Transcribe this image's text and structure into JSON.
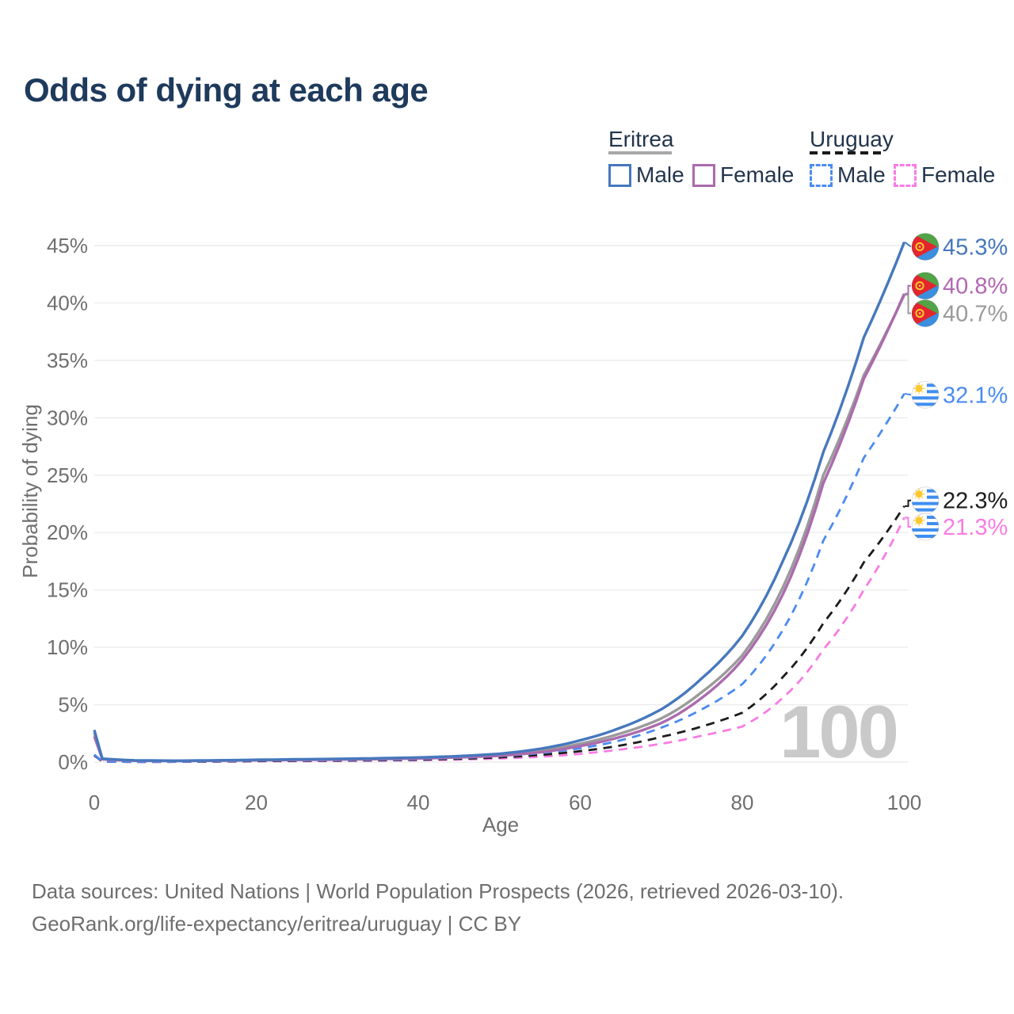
{
  "title": "Odds of dying at each age",
  "legend": {
    "eritrea": {
      "name": "Eritrea",
      "male_label": "Male",
      "female_label": "Female",
      "line_color": "#a8a8a8",
      "male_color": "#4678bd",
      "female_color": "#ab6bad"
    },
    "uruguay": {
      "name": "Uruguay",
      "male_label": "Male",
      "female_label": "Female",
      "line_color": "#1a1a1a",
      "male_color": "#4b8bf0",
      "female_color": "#f87ce4"
    }
  },
  "chart_data": {
    "type": "line",
    "title": "Odds of dying at each age",
    "xlabel": "Age",
    "ylabel": "Probability of dying",
    "xlim": [
      0,
      100
    ],
    "ylim_pct": [
      0,
      45.5
    ],
    "x_ticks": [
      0,
      20,
      40,
      60,
      80,
      100
    ],
    "y_tick_labels": [
      "0%",
      "5%",
      "10%",
      "15%",
      "20%",
      "25%",
      "30%",
      "35%",
      "40%",
      "45%"
    ],
    "grid": "horizontal",
    "watermark": "100",
    "ages": [
      0,
      1,
      5,
      10,
      15,
      20,
      25,
      30,
      35,
      40,
      45,
      50,
      55,
      60,
      65,
      70,
      75,
      80,
      85,
      90,
      95,
      100
    ],
    "series": [
      {
        "id": "eritrea-male",
        "name": "Eritrea Male",
        "country": "Eritrea",
        "sex": "Male",
        "color": "#4678bd",
        "style": "solid",
        "flag": "eritrea",
        "end_label": "45.3%",
        "end_label_color": "#4678bd",
        "label_y_pct": 44.9,
        "values_pct": [
          2.8,
          0.3,
          0.15,
          0.12,
          0.15,
          0.2,
          0.24,
          0.28,
          0.33,
          0.4,
          0.52,
          0.72,
          1.15,
          1.9,
          3.0,
          4.6,
          7.3,
          11.0,
          17.5,
          27.0,
          37.0,
          45.3
        ]
      },
      {
        "id": "eritrea-female",
        "name": "Eritrea Female",
        "country": "Eritrea",
        "sex": "Female",
        "color": "#ab6bad",
        "style": "solid",
        "flag": "eritrea",
        "end_label": "40.8%",
        "end_label_color": "#b268b3",
        "label_y_pct": 41.5,
        "values_pct": [
          2.25,
          0.25,
          0.12,
          0.1,
          0.12,
          0.16,
          0.19,
          0.22,
          0.26,
          0.32,
          0.41,
          0.55,
          0.85,
          1.4,
          2.2,
          3.4,
          5.6,
          8.9,
          14.6,
          24.3,
          33.4,
          40.8
        ]
      },
      {
        "id": "eritrea-both",
        "name": "Eritrea",
        "country": "Eritrea",
        "sex": "Both",
        "color": "#9a9a9a",
        "style": "solid",
        "flag": "eritrea",
        "end_label": "40.7%",
        "end_label_color": "#9a9a9a",
        "label_y_pct": 39.1,
        "values_pct": [
          2.55,
          0.27,
          0.13,
          0.11,
          0.13,
          0.18,
          0.21,
          0.25,
          0.29,
          0.36,
          0.46,
          0.63,
          1.0,
          1.6,
          2.5,
          3.8,
          6.1,
          9.3,
          15.2,
          25.0,
          33.7,
          40.7
        ]
      },
      {
        "id": "uruguay-male",
        "name": "Uruguay Male",
        "country": "Uruguay",
        "sex": "Male",
        "color": "#4b8bf0",
        "style": "dashed",
        "flag": "uruguay",
        "end_label": "32.1%",
        "end_label_color": "#4b8bf0",
        "label_y_pct": 32.0,
        "values_pct": [
          0.65,
          0.06,
          0.02,
          0.03,
          0.07,
          0.13,
          0.15,
          0.17,
          0.2,
          0.26,
          0.36,
          0.52,
          0.78,
          1.2,
          1.9,
          3.0,
          4.6,
          6.8,
          11.5,
          19.3,
          26.5,
          32.1
        ]
      },
      {
        "id": "uruguay-both",
        "name": "Uruguay",
        "country": "Uruguay",
        "sex": "Both",
        "color": "#1c1c1c",
        "style": "dashed",
        "flag": "uruguay",
        "end_label": "22.3%",
        "end_label_color": "#1c1c1c",
        "label_y_pct": 22.8,
        "values_pct": [
          0.6,
          0.05,
          0.018,
          0.025,
          0.05,
          0.09,
          0.11,
          0.13,
          0.16,
          0.21,
          0.29,
          0.41,
          0.62,
          0.95,
          1.45,
          2.2,
          3.1,
          4.3,
          7.4,
          12.1,
          17.4,
          22.3
        ]
      },
      {
        "id": "uruguay-female",
        "name": "Uruguay Female",
        "country": "Uruguay",
        "sex": "Female",
        "color": "#f87ce4",
        "style": "dashed",
        "flag": "uruguay",
        "end_label": "21.3%",
        "end_label_color": "#f87ce4",
        "label_y_pct": 20.5,
        "values_pct": [
          0.55,
          0.045,
          0.015,
          0.02,
          0.04,
          0.07,
          0.08,
          0.1,
          0.12,
          0.16,
          0.22,
          0.31,
          0.46,
          0.72,
          1.1,
          1.6,
          2.3,
          3.1,
          5.6,
          9.8,
          15.0,
          21.3
        ]
      }
    ]
  },
  "footer": {
    "line1": "Data sources: United Nations | World Population Prospects (2026, retrieved 2026-03-10).",
    "line2": "GeoRank.org/life-expectancy/eritrea/uruguay | CC BY"
  }
}
